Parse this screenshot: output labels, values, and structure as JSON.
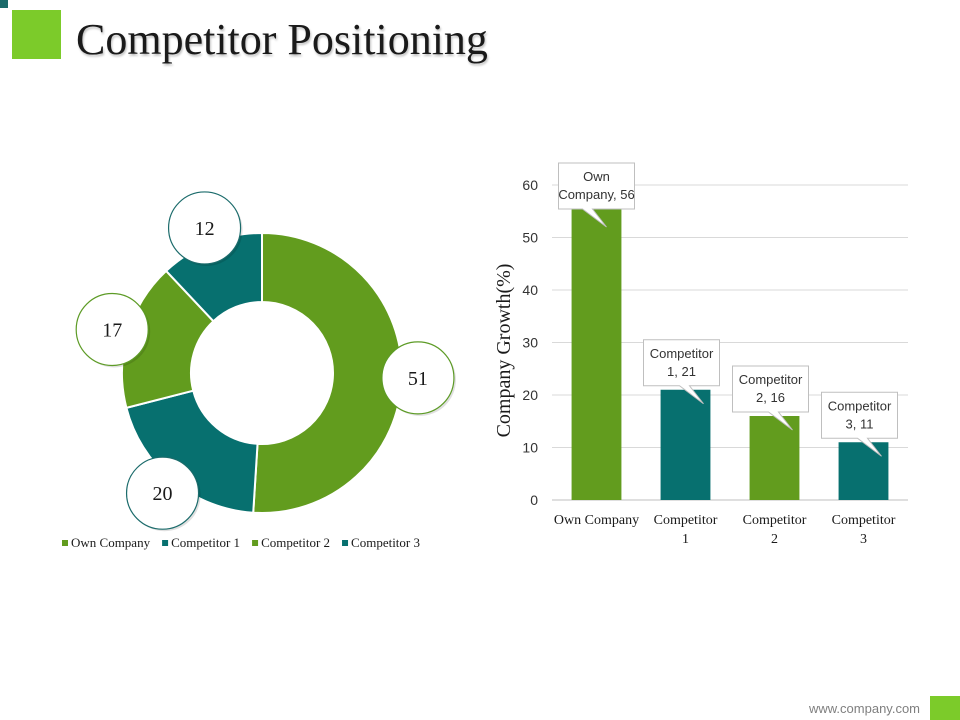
{
  "slide": {
    "title": "Competitor Positioning",
    "footer": "www.company.com"
  },
  "colors": {
    "green": "#629c1e",
    "teal": "#07706f",
    "accent": "#7ccb2a",
    "bubble_green": "#5d9b26",
    "bubble_teal": "#1b6b6b"
  },
  "chart_data": [
    {
      "type": "pie",
      "subtype": "doughnut",
      "categories": [
        "Own Company",
        "Competitor 1",
        "Competitor 2",
        "Competitor 3"
      ],
      "values": [
        51,
        20,
        17,
        12
      ],
      "data_labels": [
        "51",
        "20",
        "17",
        "12"
      ],
      "legend": [
        "Own Company",
        "Competitor 1",
        "Competitor 2",
        "Competitor 3"
      ],
      "legend_position": "bottom"
    },
    {
      "type": "bar",
      "categories": [
        "Own Company",
        "Competitor 1",
        "Competitor 2",
        "Competitor 3"
      ],
      "values": [
        56,
        21,
        16,
        11
      ],
      "data_labels": [
        "Own Company, 56",
        "Competitor 1, 21",
        "Competitor 2, 16",
        "Competitor 3, 11"
      ],
      "ylabel": "Company Growth(%)",
      "ylim": [
        0,
        60
      ],
      "yticks": [
        "0",
        "10",
        "20",
        "30",
        "40",
        "50",
        "60"
      ],
      "grid": true
    }
  ]
}
